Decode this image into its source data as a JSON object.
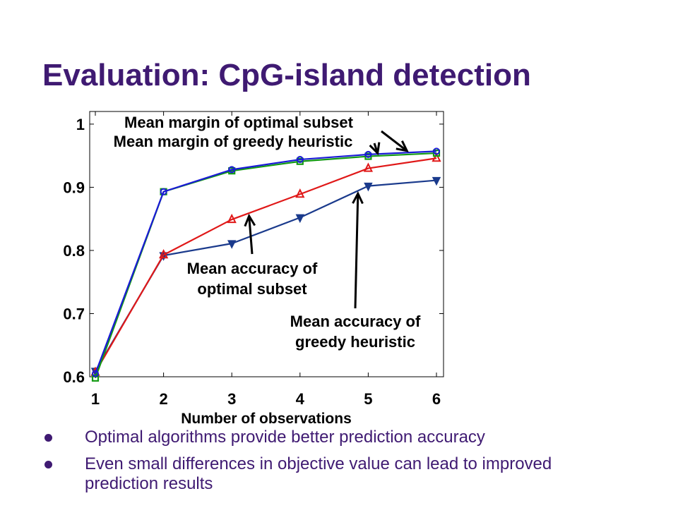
{
  "slide": {
    "title": "Evaluation: CpG-island detection",
    "bullets": [
      "Optimal algorithms provide better prediction accuracy",
      "Even small differences in objective value can lead to improved prediction results"
    ]
  },
  "colors": {
    "title": "#3f1a72",
    "optimal_margin": "#1a1ad6",
    "greedy_margin": "#139a13",
    "optimal_accuracy": "#e01818",
    "greedy_accuracy": "#1a3a8c"
  },
  "chart_data": {
    "type": "line",
    "xlabel": "Number of observations",
    "ylabel": "",
    "x": [
      1,
      2,
      3,
      4,
      5,
      6
    ],
    "xticks": [
      "1",
      "2",
      "3",
      "4",
      "5",
      "6"
    ],
    "yticks": [
      "0.6",
      "0.7",
      "0.8",
      "0.9",
      "1"
    ],
    "xlim": [
      1,
      6
    ],
    "ylim": [
      0.6,
      1.02
    ],
    "grid": false,
    "series": [
      {
        "name": "Mean margin of optimal subset",
        "color": "#1a1ad6",
        "marker": "circle",
        "values": [
          0.605,
          0.893,
          0.928,
          0.944,
          0.952,
          0.957
        ]
      },
      {
        "name": "Mean margin of greedy heuristic",
        "color": "#139a13",
        "marker": "square",
        "values": [
          0.598,
          0.893,
          0.926,
          0.941,
          0.949,
          0.954
        ]
      },
      {
        "name": "Mean accuracy of optimal subset",
        "color": "#e01818",
        "marker": "triangle-up",
        "values": [
          0.607,
          0.793,
          0.849,
          0.889,
          0.93,
          0.946
        ]
      },
      {
        "name": "Mean accuracy of greedy heuristic",
        "color": "#1a3a8c",
        "marker": "triangle-down",
        "values": [
          0.609,
          0.792,
          0.811,
          0.852,
          0.902,
          0.911
        ]
      }
    ],
    "annotations": [
      {
        "lines": [
          "Mean margin of optimal subset"
        ],
        "series": 0,
        "point_x": 5.6
      },
      {
        "lines": [
          "Mean margin of greedy heuristic"
        ],
        "series": 1,
        "point_x": 5.15
      },
      {
        "lines": [
          "Mean accuracy of",
          "optimal subset"
        ],
        "series": 2,
        "point_x": 3.25
      },
      {
        "lines": [
          "Mean accuracy of",
          "greedy heuristic"
        ],
        "series": 3,
        "point_x": 4.85
      }
    ]
  }
}
